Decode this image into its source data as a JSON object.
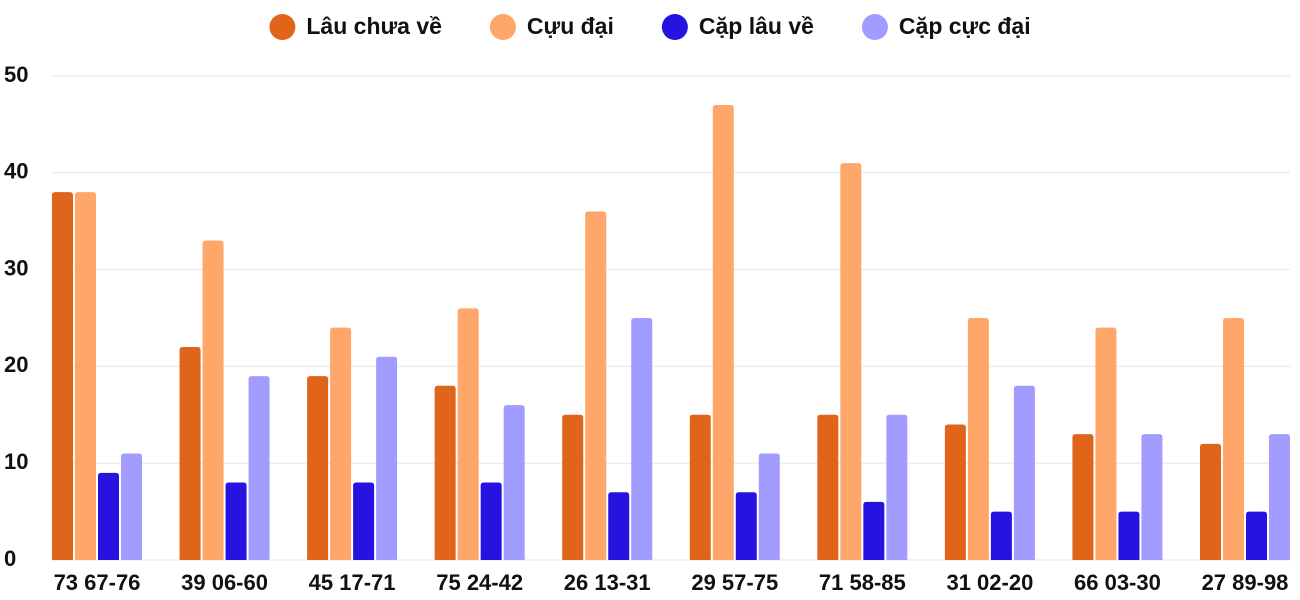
{
  "chart_data": {
    "type": "bar",
    "categories": [
      "73 67-76",
      "39 06-60",
      "45 17-71",
      "75 24-42",
      "26 13-31",
      "29 57-75",
      "71 58-85",
      "31 02-20",
      "66 03-30",
      "27 89-98"
    ],
    "series": [
      {
        "name": "Lâu chưa về",
        "color": "#e0641a",
        "values": [
          38,
          22,
          19,
          18,
          15,
          15,
          15,
          14,
          13,
          12
        ]
      },
      {
        "name": "Cựu đại",
        "color": "#ffa66a",
        "values": [
          38,
          33,
          24,
          26,
          36,
          47,
          41,
          25,
          24,
          25
        ]
      },
      {
        "name": "Cặp lâu về",
        "color": "#2613e0",
        "values": [
          9,
          8,
          8,
          8,
          7,
          7,
          6,
          5,
          5,
          5
        ]
      },
      {
        "name": "Cặp cực đại",
        "color": "#a29cff",
        "values": [
          11,
          19,
          21,
          16,
          25,
          11,
          15,
          18,
          13,
          13
        ]
      }
    ],
    "ylim": [
      0,
      50
    ],
    "yticks": [
      0,
      10,
      20,
      30,
      40,
      50
    ],
    "grid": true,
    "legend": "top"
  }
}
